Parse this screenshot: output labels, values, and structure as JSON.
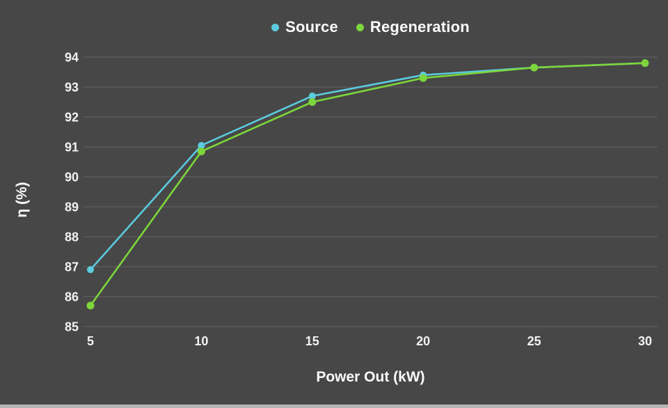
{
  "chart": {
    "x_axis_label": "Power Out (kW)",
    "y_axis_label": "η (%)"
  },
  "chart_data": {
    "type": "line",
    "x": [
      5,
      10,
      15,
      20,
      25,
      30
    ],
    "series": [
      {
        "name": "Source",
        "color": "#5bcbdf",
        "values": [
          86.9,
          91.05,
          92.7,
          93.4,
          93.65,
          93.8
        ]
      },
      {
        "name": "Regeneration",
        "color": "#7dd63b",
        "values": [
          85.7,
          90.85,
          92.5,
          93.3,
          93.65,
          93.8
        ]
      }
    ],
    "title": "",
    "xlabel": "Power Out (kW)",
    "ylabel": "η (%)",
    "xlim": [
      5,
      30
    ],
    "ylim": [
      85,
      94
    ],
    "x_ticks": [
      5,
      10,
      15,
      20,
      25,
      30
    ],
    "y_ticks": [
      85,
      86,
      87,
      88,
      89,
      90,
      91,
      92,
      93,
      94
    ],
    "grid": "horizontal-only",
    "legend_position": "top-center",
    "marker": "circle"
  },
  "colors": {
    "background": "#474747",
    "gridline": "#5a5a5a",
    "text": "#f5f5f5",
    "bottom_strip": "#b5b5b5"
  }
}
